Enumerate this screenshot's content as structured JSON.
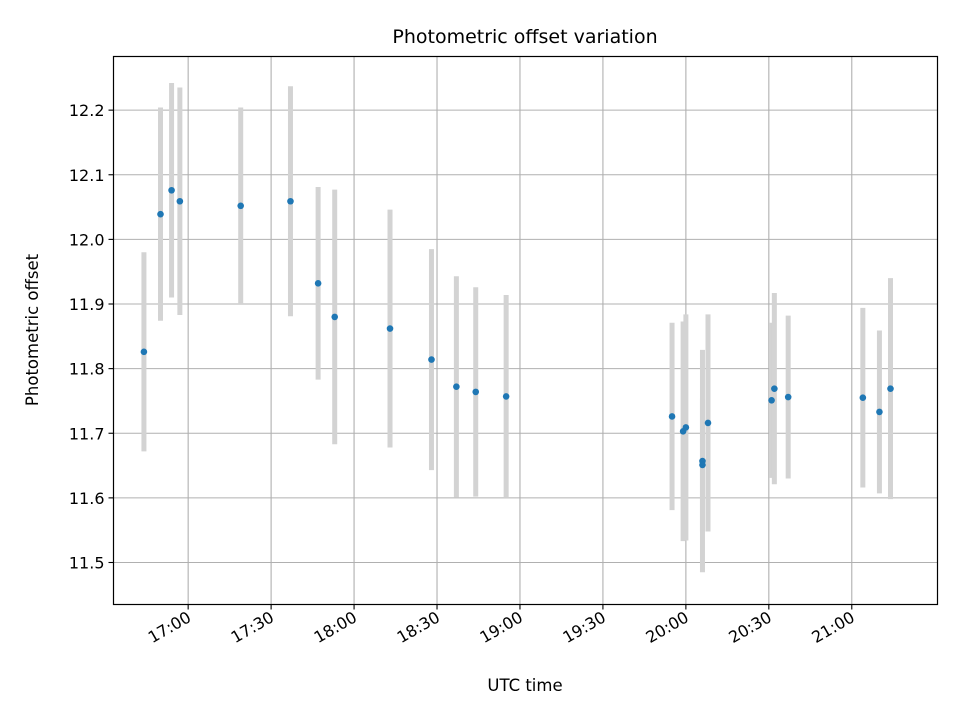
{
  "chart_data": {
    "type": "scatter",
    "title": "Photometric offset variation",
    "xlabel": "UTC time",
    "ylabel": "Photometric offset",
    "x_unit": "UTC clock time (HH:MM)",
    "xlim": [
      "16:33",
      "21:31"
    ],
    "ylim": [
      11.435,
      12.283
    ],
    "x_ticks": [
      "17:00",
      "17:30",
      "18:00",
      "18:30",
      "19:00",
      "19:30",
      "20:00",
      "20:30",
      "21:00"
    ],
    "y_ticks": [
      11.5,
      11.6,
      11.7,
      11.8,
      11.9,
      12.0,
      12.1,
      12.2
    ],
    "y_tick_labels": [
      "11.5",
      "11.6",
      "11.7",
      "11.8",
      "11.9",
      "12.0",
      "12.1",
      "12.2"
    ],
    "grid": true,
    "legend": "none",
    "colors": {
      "marker": "#1f77b4",
      "errorbar": "#d3d3d3",
      "grid": "#b0b0b0"
    },
    "series": [
      {
        "points": [
          {
            "x": "16:44",
            "y": 11.826,
            "yerr": 0.154
          },
          {
            "x": "16:50",
            "y": 12.039,
            "yerr": 0.165
          },
          {
            "x": "16:54",
            "y": 12.076,
            "yerr": 0.166
          },
          {
            "x": "16:57",
            "y": 12.059,
            "yerr": 0.176
          },
          {
            "x": "17:19",
            "y": 12.052,
            "yerr": 0.152
          },
          {
            "x": "17:37",
            "y": 12.059,
            "yerr": 0.178
          },
          {
            "x": "17:47",
            "y": 11.932,
            "yerr": 0.149
          },
          {
            "x": "17:53",
            "y": 11.88,
            "yerr": 0.197
          },
          {
            "x": "18:13",
            "y": 11.862,
            "yerr": 0.184
          },
          {
            "x": "18:28",
            "y": 11.814,
            "yerr": 0.171
          },
          {
            "x": "18:37",
            "y": 11.772,
            "yerr": 0.171
          },
          {
            "x": "18:44",
            "y": 11.764,
            "yerr": 0.162
          },
          {
            "x": "18:55",
            "y": 11.757,
            "yerr": 0.157
          },
          {
            "x": "19:55",
            "y": 11.726,
            "yerr": 0.145
          },
          {
            "x": "19:59",
            "y": 11.703,
            "yerr": 0.17
          },
          {
            "x": "20:00",
            "y": 11.709,
            "yerr": 0.175
          },
          {
            "x": "20:06",
            "y": 11.657,
            "yerr": 0.172
          },
          {
            "x": "20:06",
            "y": 11.651,
            "yerr": 0.103
          },
          {
            "x": "20:08",
            "y": 11.716,
            "yerr": 0.168
          },
          {
            "x": "20:31",
            "y": 11.751,
            "yerr": 0.12
          },
          {
            "x": "20:32",
            "y": 11.769,
            "yerr": 0.148
          },
          {
            "x": "20:37",
            "y": 11.756,
            "yerr": 0.126
          },
          {
            "x": "21:04",
            "y": 11.755,
            "yerr": 0.139
          },
          {
            "x": "21:10",
            "y": 11.733,
            "yerr": 0.126
          },
          {
            "x": "21:14",
            "y": 11.769,
            "yerr": 0.171
          }
        ]
      }
    ]
  }
}
